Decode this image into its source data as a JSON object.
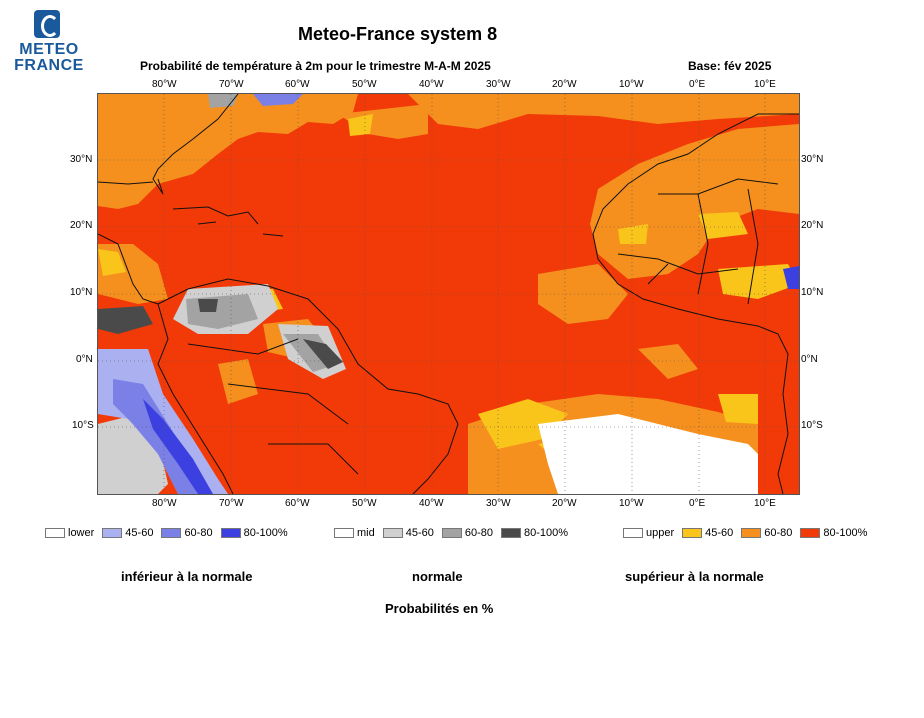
{
  "header": {
    "logo_text": "METEO FRANCE",
    "title": "Meteo-France system 8",
    "subtitle": "Probabilité de température à 2m pour le trimestre M-A-M 2025",
    "base": "Base: fév 2025"
  },
  "axes": {
    "lon_labels": [
      "80°W",
      "70°W",
      "60°W",
      "50°W",
      "40°W",
      "30°W",
      "20°W",
      "10°W",
      "0°E",
      "10°E"
    ],
    "lat_labels": [
      "30°N",
      "20°N",
      "10°N",
      "0°N",
      "10°S"
    ]
  },
  "colors": {
    "ocean_upper_80": "#f23a08",
    "upper_60_80": "#f5901e",
    "upper_45_60": "#f9c51a",
    "mid_45_60": "#d0d0d0",
    "mid_60_80": "#a3a3a3",
    "mid_80_100": "#4a4a4a",
    "lower_45_60": "#aab0f0",
    "lower_60_80": "#7a80e6",
    "lower_80_100": "#3c40e0"
  },
  "legend": {
    "lower": {
      "title": "lower",
      "items": [
        "45-60",
        "60-80",
        "80-100%"
      ]
    },
    "mid": {
      "title": "mid",
      "items": [
        "45-60",
        "60-80",
        "80-100%"
      ]
    },
    "upper": {
      "title": "upper",
      "items": [
        "45-60",
        "60-80",
        "80-100%"
      ]
    }
  },
  "categories": {
    "lower": "inférieur à la normale",
    "mid": "normale",
    "upper": "supérieur à la normale"
  },
  "footer": "Probabilités en %"
}
